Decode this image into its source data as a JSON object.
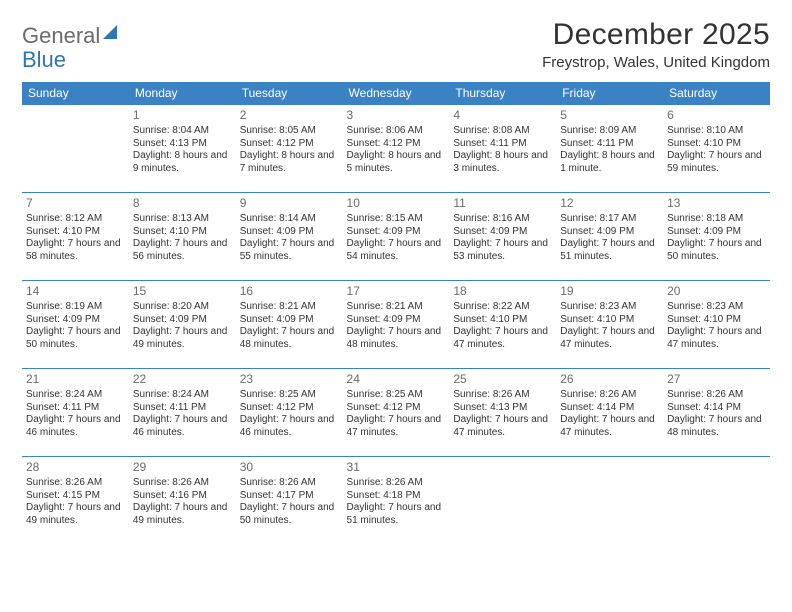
{
  "logo": {
    "line1": "General",
    "line2": "Blue"
  },
  "title": "December 2025",
  "location": "Freystrop, Wales, United Kingdom",
  "styling": {
    "accent_color": "#3b82c4",
    "header_text_color": "#ffffff",
    "body_text_color": "#333333",
    "daynum_color": "#6b6b6b",
    "logo_gray": "#6b6b6b",
    "logo_blue": "#2f74b5",
    "bg": "#ffffff",
    "title_fontsize": 30,
    "location_fontsize": 15,
    "header_fontsize": 12,
    "cell_fontsize": 10,
    "columns": 7,
    "rows": 5
  },
  "weekdays": [
    "Sunday",
    "Monday",
    "Tuesday",
    "Wednesday",
    "Thursday",
    "Friday",
    "Saturday"
  ],
  "weeks": [
    [
      null,
      {
        "n": "1",
        "sunrise": "8:04 AM",
        "sunset": "4:13 PM",
        "daylight": "8 hours and 9 minutes."
      },
      {
        "n": "2",
        "sunrise": "8:05 AM",
        "sunset": "4:12 PM",
        "daylight": "8 hours and 7 minutes."
      },
      {
        "n": "3",
        "sunrise": "8:06 AM",
        "sunset": "4:12 PM",
        "daylight": "8 hours and 5 minutes."
      },
      {
        "n": "4",
        "sunrise": "8:08 AM",
        "sunset": "4:11 PM",
        "daylight": "8 hours and 3 minutes."
      },
      {
        "n": "5",
        "sunrise": "8:09 AM",
        "sunset": "4:11 PM",
        "daylight": "8 hours and 1 minute."
      },
      {
        "n": "6",
        "sunrise": "8:10 AM",
        "sunset": "4:10 PM",
        "daylight": "7 hours and 59 minutes."
      }
    ],
    [
      {
        "n": "7",
        "sunrise": "8:12 AM",
        "sunset": "4:10 PM",
        "daylight": "7 hours and 58 minutes."
      },
      {
        "n": "8",
        "sunrise": "8:13 AM",
        "sunset": "4:10 PM",
        "daylight": "7 hours and 56 minutes."
      },
      {
        "n": "9",
        "sunrise": "8:14 AM",
        "sunset": "4:09 PM",
        "daylight": "7 hours and 55 minutes."
      },
      {
        "n": "10",
        "sunrise": "8:15 AM",
        "sunset": "4:09 PM",
        "daylight": "7 hours and 54 minutes."
      },
      {
        "n": "11",
        "sunrise": "8:16 AM",
        "sunset": "4:09 PM",
        "daylight": "7 hours and 53 minutes."
      },
      {
        "n": "12",
        "sunrise": "8:17 AM",
        "sunset": "4:09 PM",
        "daylight": "7 hours and 51 minutes."
      },
      {
        "n": "13",
        "sunrise": "8:18 AM",
        "sunset": "4:09 PM",
        "daylight": "7 hours and 50 minutes."
      }
    ],
    [
      {
        "n": "14",
        "sunrise": "8:19 AM",
        "sunset": "4:09 PM",
        "daylight": "7 hours and 50 minutes."
      },
      {
        "n": "15",
        "sunrise": "8:20 AM",
        "sunset": "4:09 PM",
        "daylight": "7 hours and 49 minutes."
      },
      {
        "n": "16",
        "sunrise": "8:21 AM",
        "sunset": "4:09 PM",
        "daylight": "7 hours and 48 minutes."
      },
      {
        "n": "17",
        "sunrise": "8:21 AM",
        "sunset": "4:09 PM",
        "daylight": "7 hours and 48 minutes."
      },
      {
        "n": "18",
        "sunrise": "8:22 AM",
        "sunset": "4:10 PM",
        "daylight": "7 hours and 47 minutes."
      },
      {
        "n": "19",
        "sunrise": "8:23 AM",
        "sunset": "4:10 PM",
        "daylight": "7 hours and 47 minutes."
      },
      {
        "n": "20",
        "sunrise": "8:23 AM",
        "sunset": "4:10 PM",
        "daylight": "7 hours and 47 minutes."
      }
    ],
    [
      {
        "n": "21",
        "sunrise": "8:24 AM",
        "sunset": "4:11 PM",
        "daylight": "7 hours and 46 minutes."
      },
      {
        "n": "22",
        "sunrise": "8:24 AM",
        "sunset": "4:11 PM",
        "daylight": "7 hours and 46 minutes."
      },
      {
        "n": "23",
        "sunrise": "8:25 AM",
        "sunset": "4:12 PM",
        "daylight": "7 hours and 46 minutes."
      },
      {
        "n": "24",
        "sunrise": "8:25 AM",
        "sunset": "4:12 PM",
        "daylight": "7 hours and 47 minutes."
      },
      {
        "n": "25",
        "sunrise": "8:26 AM",
        "sunset": "4:13 PM",
        "daylight": "7 hours and 47 minutes."
      },
      {
        "n": "26",
        "sunrise": "8:26 AM",
        "sunset": "4:14 PM",
        "daylight": "7 hours and 47 minutes."
      },
      {
        "n": "27",
        "sunrise": "8:26 AM",
        "sunset": "4:14 PM",
        "daylight": "7 hours and 48 minutes."
      }
    ],
    [
      {
        "n": "28",
        "sunrise": "8:26 AM",
        "sunset": "4:15 PM",
        "daylight": "7 hours and 49 minutes."
      },
      {
        "n": "29",
        "sunrise": "8:26 AM",
        "sunset": "4:16 PM",
        "daylight": "7 hours and 49 minutes."
      },
      {
        "n": "30",
        "sunrise": "8:26 AM",
        "sunset": "4:17 PM",
        "daylight": "7 hours and 50 minutes."
      },
      {
        "n": "31",
        "sunrise": "8:26 AM",
        "sunset": "4:18 PM",
        "daylight": "7 hours and 51 minutes."
      },
      null,
      null,
      null
    ]
  ],
  "labels": {
    "sunrise": "Sunrise:",
    "sunset": "Sunset:",
    "daylight": "Daylight:"
  }
}
